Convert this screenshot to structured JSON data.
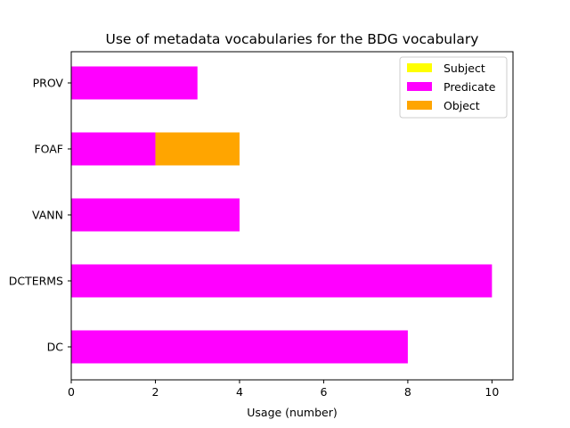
{
  "chart_data": {
    "type": "bar",
    "orientation": "horizontal",
    "stacked": true,
    "title": "Use of metadata vocabularies for the BDG vocabulary",
    "xlabel": "Usage (number)",
    "ylabel": "",
    "categories": [
      "DC",
      "DCTERMS",
      "VANN",
      "FOAF",
      "PROV"
    ],
    "series": [
      {
        "name": "Subject",
        "color": "#ffff00",
        "values": [
          0,
          0,
          0,
          0,
          0
        ]
      },
      {
        "name": "Predicate",
        "color": "#ff00ff",
        "values": [
          8,
          10,
          4,
          2,
          3
        ]
      },
      {
        "name": "Object",
        "color": "#ffa500",
        "values": [
          0,
          0,
          0,
          2,
          0
        ]
      }
    ],
    "xlim": [
      0,
      10.5
    ],
    "xticks": [
      "0",
      "2",
      "4",
      "6",
      "8",
      "10"
    ],
    "grid": false,
    "legend_position": "top-right"
  }
}
